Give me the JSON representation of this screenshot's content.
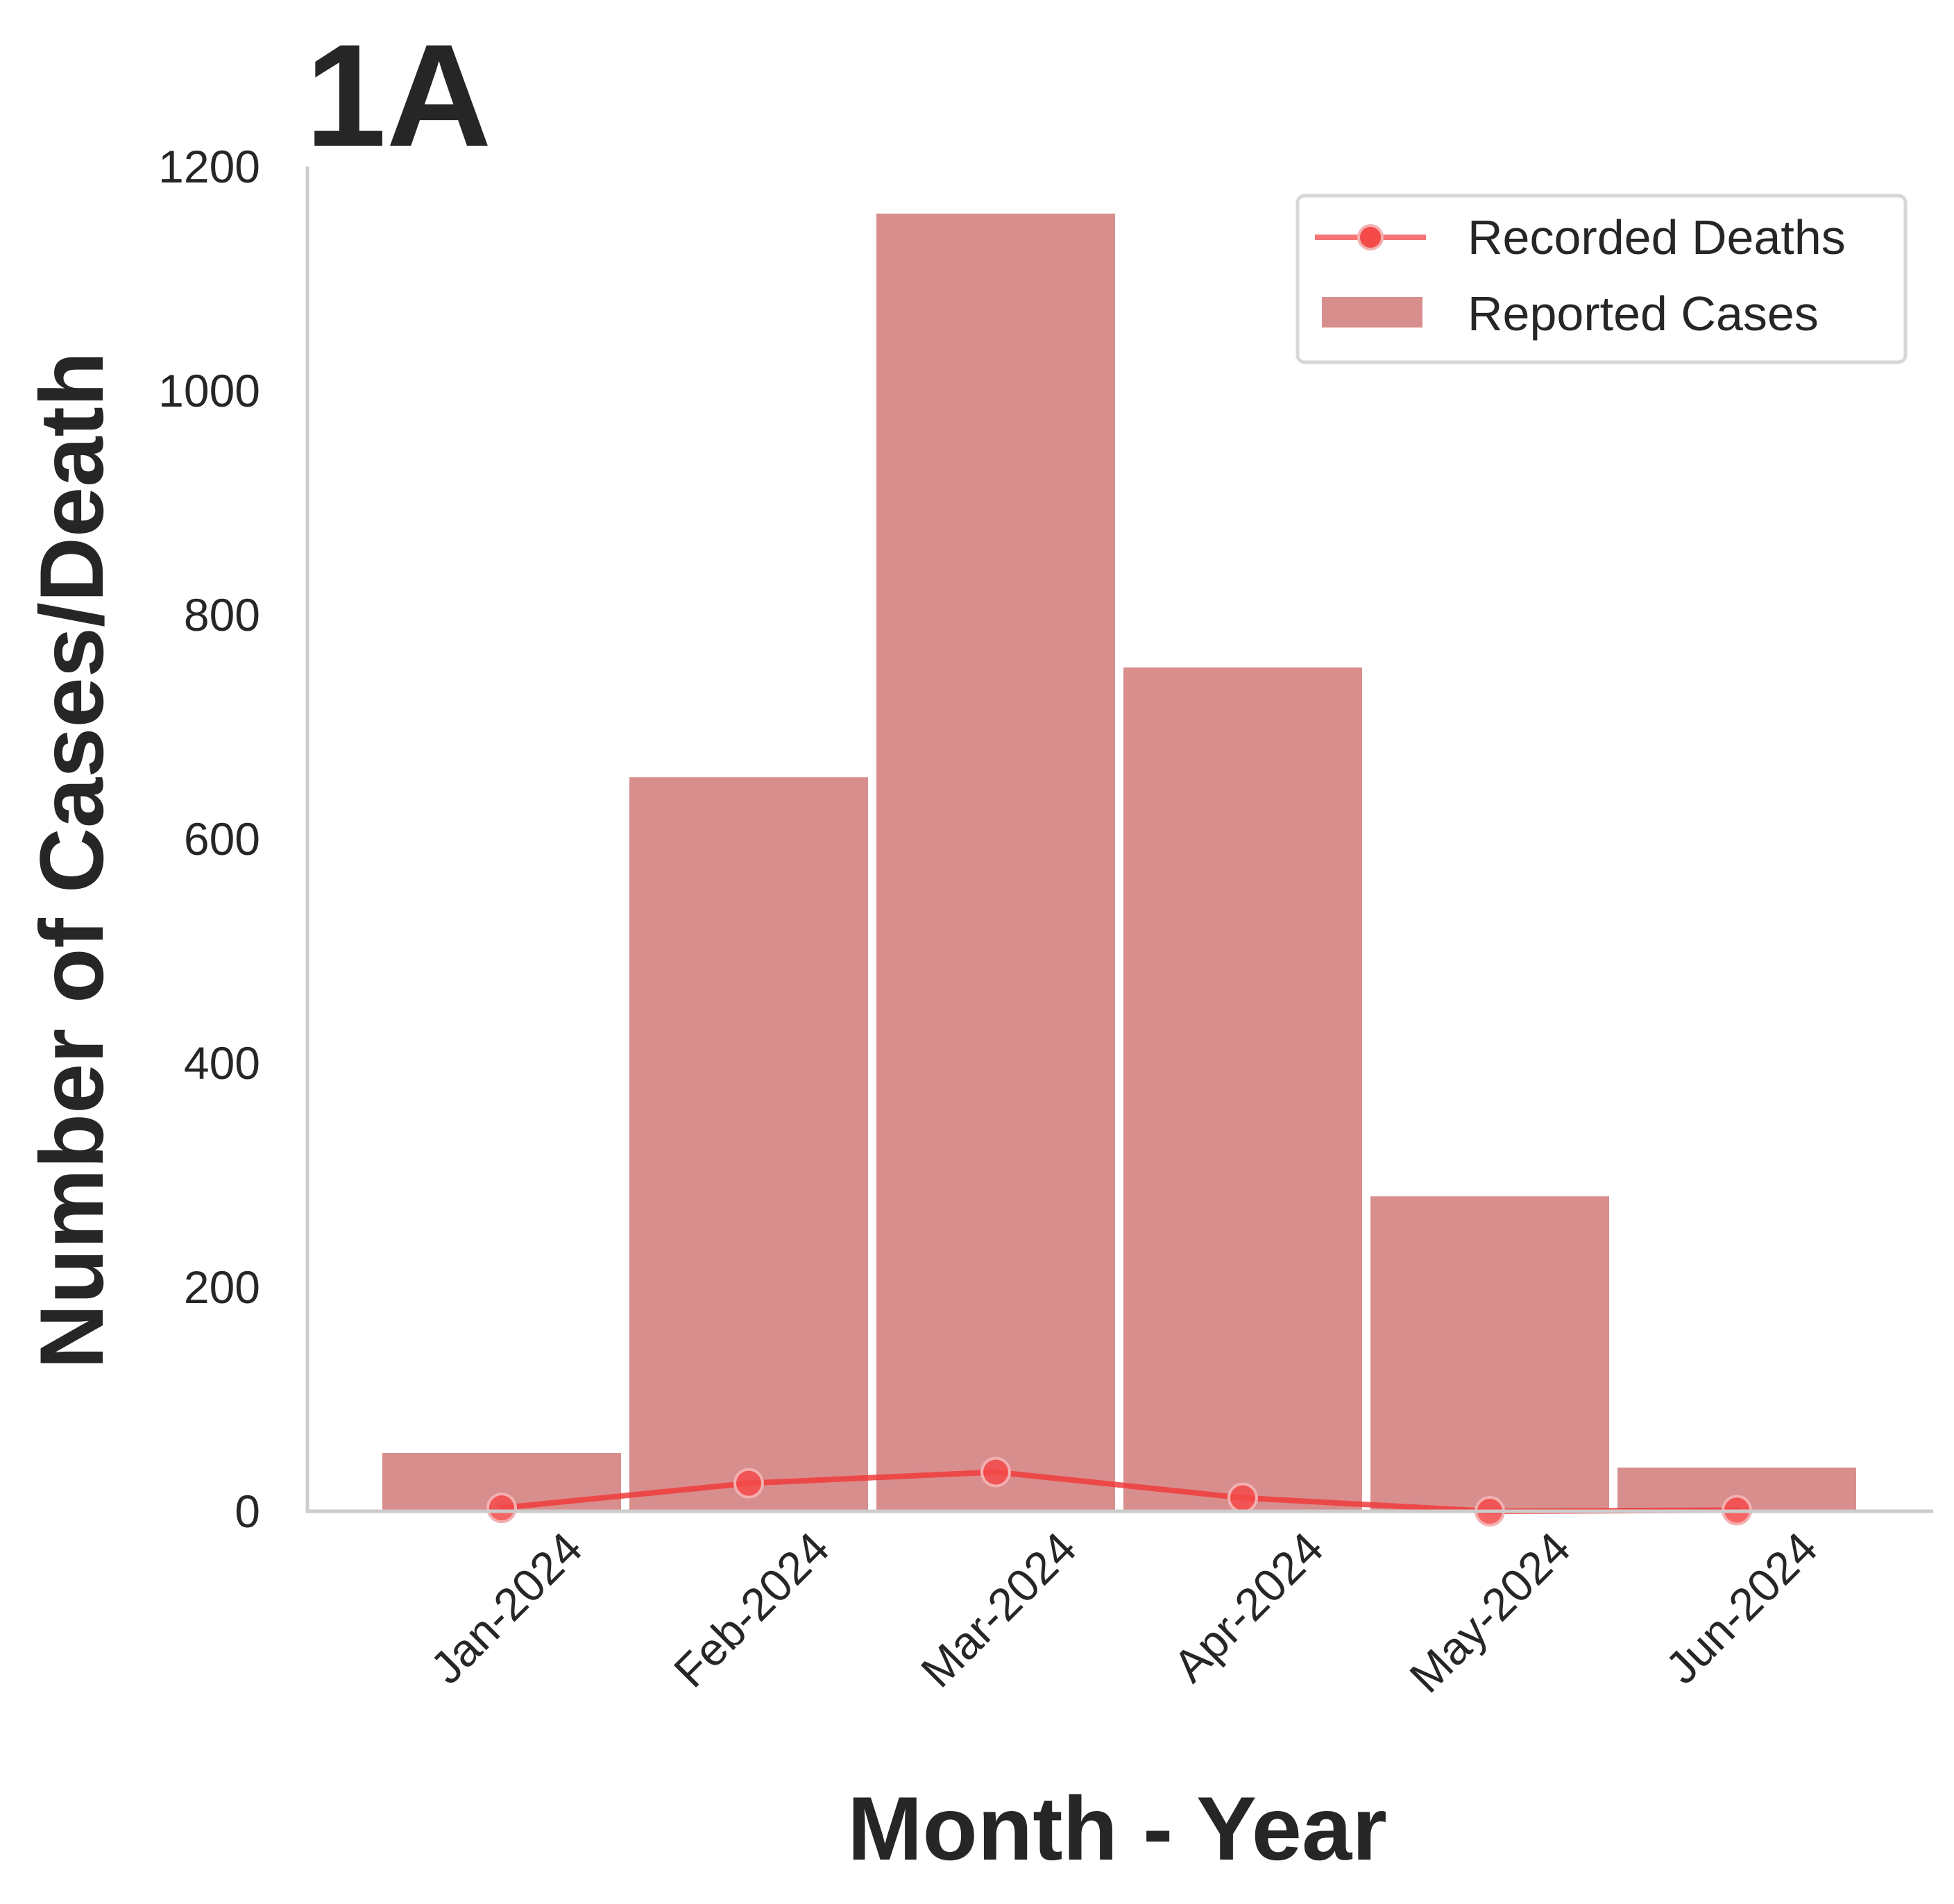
{
  "panel_label": "1A",
  "colors": {
    "bar": "#d98e8e",
    "line": "#f03c3c",
    "marker": "#f44a4a",
    "marker_edge": "#f3b0b0",
    "axis": "#cccccc",
    "text": "#262626"
  },
  "chart_data": {
    "type": "bar",
    "title": "",
    "xlabel": "Month - Year",
    "ylabel": "Number of Cases/Death",
    "categories": [
      "Jan-2024",
      "Feb-2024",
      "Mar-2024",
      "Apr-2024",
      "May-2024",
      "Jun-2024"
    ],
    "ylim": [
      0,
      1200
    ],
    "yticks": [
      0,
      200,
      400,
      600,
      800,
      1000,
      1200
    ],
    "ytick_labels": [
      "0",
      "200",
      "400",
      "600",
      "800",
      "1000",
      "1200"
    ],
    "grid": false,
    "legend": "top-right",
    "series": [
      {
        "name": "Reported Cases",
        "kind": "bar",
        "values": [
          52,
          655,
          1158,
          753,
          281,
          39
        ]
      },
      {
        "name": "Recorded Deaths",
        "kind": "line",
        "values": [
          3,
          25,
          35,
          12,
          0,
          1
        ]
      }
    ]
  }
}
